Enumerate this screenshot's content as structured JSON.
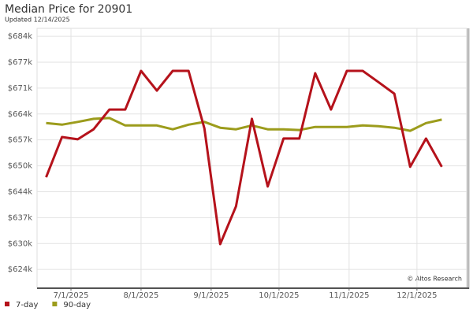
{
  "chart_data": {
    "type": "line",
    "title": "Median Price for 20901",
    "subtitle": "Updated 12/14/2025",
    "annotation": "© Altos Research",
    "x": [
      "2025-06-20",
      "2025-06-27",
      "2025-07-04",
      "2025-07-11",
      "2025-07-18",
      "2025-07-25",
      "2025-08-01",
      "2025-08-08",
      "2025-08-15",
      "2025-08-22",
      "2025-08-29",
      "2025-09-05",
      "2025-09-12",
      "2025-09-19",
      "2025-09-26",
      "2025-10-03",
      "2025-10-10",
      "2025-10-17",
      "2025-10-24",
      "2025-10-31",
      "2025-11-07",
      "2025-11-14",
      "2025-11-21",
      "2025-11-28",
      "2025-12-05",
      "2025-12-12"
    ],
    "series": [
      {
        "name": "7-day",
        "color": "#b5121b",
        "values": [
          647500,
          657900,
          657300,
          659900,
          665000,
          665000,
          675000,
          669900,
          675000,
          675000,
          660100,
          630200,
          640000,
          662600,
          645100,
          657500,
          657500,
          674400,
          665000,
          675000,
          675000,
          672100,
          669100,
          650200,
          657500,
          650200
        ]
      },
      {
        "name": "90-day",
        "color": "#9c9c1c",
        "values": [
          661500,
          661100,
          661800,
          662600,
          662800,
          660900,
          660900,
          660900,
          659900,
          661100,
          661800,
          660300,
          659900,
          660900,
          659900,
          659900,
          659700,
          660500,
          660500,
          660500,
          660900,
          660700,
          660300,
          659500,
          661500,
          662400
        ]
      }
    ],
    "xlim": [
      "2025-06-16",
      "2025-12-23"
    ],
    "xticks": [
      {
        "value": "2025-07-01",
        "label": "7/1/2025"
      },
      {
        "value": "2025-08-01",
        "label": "8/1/2025"
      },
      {
        "value": "2025-09-01",
        "label": "9/1/2025"
      },
      {
        "value": "2025-10-01",
        "label": "10/1/2025"
      },
      {
        "value": "2025-11-01",
        "label": "11/1/2025"
      },
      {
        "value": "2025-12-01",
        "label": "12/1/2025"
      }
    ],
    "ylim": [
      619000,
      686000
    ],
    "yticks": [
      {
        "value": 623650,
        "label": "$624k"
      },
      {
        "value": 630350,
        "label": "$630k"
      },
      {
        "value": 637050,
        "label": "$637k"
      },
      {
        "value": 643750,
        "label": "$644k"
      },
      {
        "value": 650450,
        "label": "$650k"
      },
      {
        "value": 657150,
        "label": "$657k"
      },
      {
        "value": 663850,
        "label": "$664k"
      },
      {
        "value": 670550,
        "label": "$671k"
      },
      {
        "value": 677250,
        "label": "$677k"
      },
      {
        "value": 683950,
        "label": "$684k"
      }
    ],
    "grid": true,
    "legend": "bottom-left"
  }
}
